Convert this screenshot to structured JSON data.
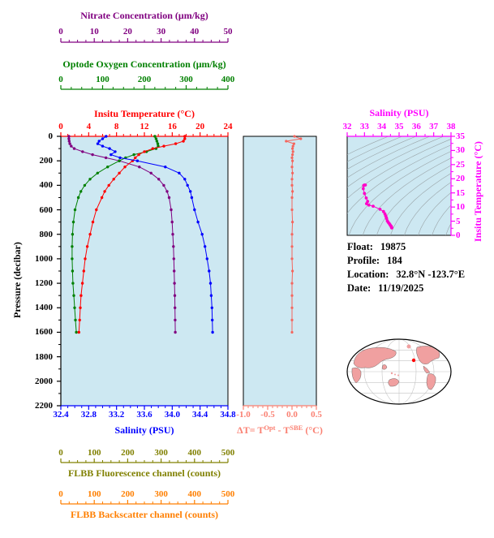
{
  "colors": {
    "plot_bg": "#cde8f2",
    "contour": "#9aa4a8",
    "land": "#f0a0a0",
    "map_outline": "#000000",
    "marker": "#ff0000"
  },
  "axes": {
    "nitrate": {
      "title": "Nitrate Concentration (μm/kg)",
      "ticks": [
        "0",
        "10",
        "20",
        "30",
        "40",
        "50"
      ],
      "color": "#800080"
    },
    "oxygen": {
      "title": "Optode Oxygen Concentration (μm/kg)",
      "ticks": [
        "0",
        "100",
        "200",
        "300",
        "400"
      ],
      "color": "#008000"
    },
    "temperature": {
      "title": "Insitu Temperature (°C)",
      "ticks": [
        "0",
        "4",
        "8",
        "12",
        "16",
        "20",
        "24"
      ],
      "color": "#ff0000"
    },
    "pressure": {
      "title": "Pressure (decibar)",
      "ticks": [
        "0",
        "200",
        "400",
        "600",
        "800",
        "1000",
        "1200",
        "1400",
        "1600",
        "1800",
        "2000",
        "2200"
      ],
      "color": "#000000"
    },
    "salinity": {
      "title": "Salinity (PSU)",
      "ticks": [
        "32.4",
        "32.8",
        "33.2",
        "33.6",
        "34.0",
        "34.4",
        "34.8"
      ],
      "color": "#0000ff"
    },
    "fluorescence": {
      "title": "FLBB Fluorescence channel (counts)",
      "ticks": [
        "0",
        "100",
        "200",
        "300",
        "400",
        "500"
      ],
      "color": "#808000"
    },
    "backscatter": {
      "title": "FLBB Backscatter channel (counts)",
      "ticks": [
        "0",
        "100",
        "200",
        "300",
        "400",
        "500"
      ],
      "color": "#ff7f00"
    },
    "delta_t": {
      "title": "ΔT= T^Opt - T^SBE (°C)",
      "title_parts": {
        "p1": "ΔT= T",
        "sup1": "Opt",
        "p2": " - T",
        "sup2": "SBE",
        "p3": " (°C)"
      },
      "ticks": [
        "-1.0",
        "-0.5",
        "0.0",
        "0.5"
      ],
      "color": "#fa8072"
    },
    "ts_salinity": {
      "title": "Salinity (PSU)",
      "ticks": [
        "32",
        "33",
        "34",
        "35",
        "36",
        "37",
        "38"
      ],
      "color": "#ff00ff"
    },
    "ts_temperature": {
      "title": "Insitu Temperature (°C)",
      "ticks": [
        "0",
        "5",
        "10",
        "15",
        "20",
        "25",
        "30",
        "35"
      ],
      "color": "#ff00ff"
    }
  },
  "info": {
    "rows": [
      {
        "label": "Float:",
        "value": "19875"
      },
      {
        "label": "Profile:",
        "value": "184"
      },
      {
        "label": "Location:",
        "value": "32.8°N -123.7°E"
      },
      {
        "label": "Date:",
        "value": "11/19/2025"
      }
    ]
  },
  "chart_data": [
    {
      "id": "profiles",
      "type": "line",
      "ylabel": "Pressure (decibar)",
      "ylim": [
        0,
        2200
      ],
      "y_inverted": true,
      "pressures": [
        0,
        20,
        40,
        60,
        80,
        100,
        125,
        150,
        175,
        200,
        250,
        300,
        350,
        400,
        450,
        500,
        600,
        700,
        800,
        900,
        1000,
        1100,
        1200,
        1300,
        1400,
        1500,
        1600
      ],
      "series": [
        {
          "name": "Nitrate Concentration (μm/kg)",
          "color": "#800080",
          "xlim": [
            0,
            50
          ],
          "values": [
            2.4,
            2.4,
            2.5,
            2.7,
            3.1,
            4.0,
            6.5,
            9.5,
            13.5,
            17.5,
            23.5,
            27.0,
            29.3,
            30.8,
            31.8,
            32.4,
            33.0,
            33.3,
            33.5,
            33.7,
            33.8,
            33.9,
            34.0,
            34.1,
            34.15,
            34.2,
            34.25
          ]
        },
        {
          "name": "Optode Oxygen Concentration (μm/kg)",
          "color": "#008000",
          "xlim": [
            0,
            400
          ],
          "values": [
            225,
            228,
            230,
            232,
            233,
            228,
            205,
            175,
            155,
            140,
            112,
            88,
            70,
            57,
            48,
            42,
            34,
            30,
            28,
            27,
            27,
            28,
            29,
            31,
            33,
            35,
            37
          ]
        },
        {
          "name": "Insitu Temperature (°C)",
          "color": "#ff0000",
          "xlim": [
            0,
            24
          ],
          "values": [
            17.8,
            17.8,
            17.6,
            16.5,
            14.8,
            13.2,
            12.0,
            11.2,
            10.7,
            10.3,
            9.2,
            8.4,
            7.6,
            6.9,
            6.3,
            5.9,
            5.1,
            4.6,
            4.2,
            3.8,
            3.5,
            3.3,
            3.1,
            2.9,
            2.8,
            2.7,
            2.6
          ]
        },
        {
          "name": "Salinity (PSU)",
          "color": "#0000ff",
          "xlim": [
            32.4,
            34.8
          ],
          "values": [
            33.05,
            33.0,
            32.95,
            32.93,
            33.0,
            33.1,
            33.18,
            33.12,
            33.25,
            33.5,
            33.9,
            34.1,
            34.18,
            34.22,
            34.26,
            34.28,
            34.32,
            34.37,
            34.43,
            34.47,
            34.5,
            34.53,
            34.55,
            34.56,
            34.57,
            34.575,
            34.58
          ]
        }
      ]
    },
    {
      "id": "delta_t",
      "type": "line",
      "xlabel": "ΔT= T^Opt - T^SBE (°C)",
      "xlim": [
        -1.0,
        0.5
      ],
      "ylim": [
        0,
        2200
      ],
      "color": "#f4665e",
      "pressures": [
        0,
        20,
        40,
        60,
        80,
        100,
        125,
        150,
        175,
        200,
        250,
        300,
        350,
        400,
        450,
        500,
        600,
        700,
        800,
        900,
        1000,
        1100,
        1200,
        1300,
        1400,
        1500,
        1600
      ],
      "values": [
        0.05,
        0.18,
        -0.12,
        0.04,
        0.02,
        0.01,
        0.02,
        0.01,
        0,
        0.01,
        0,
        0.01,
        0,
        0,
        0.01,
        0,
        0,
        0.01,
        0,
        0,
        0,
        0.01,
        0,
        0,
        0,
        0,
        0
      ]
    },
    {
      "id": "ts_diagram",
      "type": "scatter",
      "xlabel": "Salinity (PSU)",
      "ylabel": "Insitu Temperature (°C)",
      "xlim": [
        32,
        38
      ],
      "ylim": [
        0,
        35
      ],
      "color": "#ff00c8",
      "note": "points are the (salinity, temperature) pairs of the profiles chart; background shows density isopleths"
    }
  ]
}
